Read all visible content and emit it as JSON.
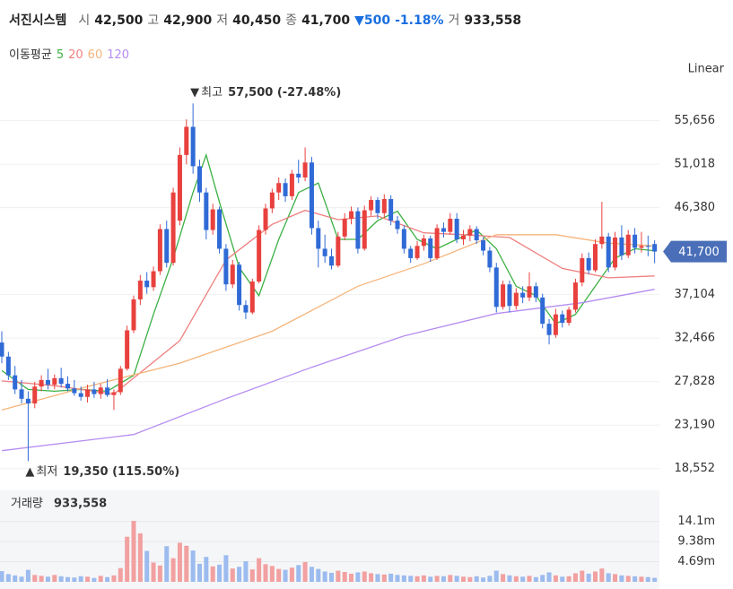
{
  "chart_data": {
    "type": "candlestick",
    "header": {
      "name": "서진시스템",
      "open_label": "시",
      "open": "42,500",
      "high_label": "고",
      "high": "42,900",
      "low_label": "저",
      "low": "40,450",
      "close_label": "종",
      "close": "41,700",
      "change": "▼500",
      "change_pct": "-1.18%",
      "volume_label": "거",
      "volume": "933,558"
    },
    "ma_title": "이동평균",
    "scale_mode": "Linear",
    "up_color": "#e8413e",
    "down_color": "#2f6ad6",
    "up_volume_color": "#f2a0a0",
    "down_volume_color": "#9cbbee",
    "ylim": [
      16900,
      60400
    ],
    "yticks": [
      {
        "value": 55656,
        "label": "55,656"
      },
      {
        "value": 51018,
        "label": "51,018"
      },
      {
        "value": 46380,
        "label": "46,380"
      },
      {
        "value": 37104,
        "label": "37,104"
      },
      {
        "value": 32466,
        "label": "32,466"
      },
      {
        "value": 27828,
        "label": "27,828"
      },
      {
        "value": 23190,
        "label": "23,190"
      },
      {
        "value": 18552,
        "label": "18,552"
      }
    ],
    "grid": true,
    "price_tag": {
      "value": 41700,
      "label": "41,700",
      "color": "#4a6fb8"
    },
    "high_note": {
      "marker": "▼",
      "label": "최고",
      "text": "57,500 (-27.48%)",
      "index": 29,
      "value": 57500
    },
    "low_note": {
      "marker": "▲",
      "label": "최저",
      "text": "19,350 (115.50%)",
      "index": 4,
      "value": 19350
    },
    "candles": [
      [
        32000,
        33200,
        29800,
        30500
      ],
      [
        30500,
        31000,
        28000,
        28500
      ],
      [
        28500,
        29500,
        26500,
        27000
      ],
      [
        27000,
        28000,
        25500,
        26000
      ],
      [
        26000,
        26800,
        19350,
        25500
      ],
      [
        25500,
        27800,
        25000,
        27300
      ],
      [
        27300,
        28500,
        26800,
        28000
      ],
      [
        28000,
        29200,
        27000,
        27500
      ],
      [
        27500,
        28600,
        27000,
        28200
      ],
      [
        28200,
        29300,
        27200,
        27600
      ],
      [
        27600,
        28400,
        26800,
        27100
      ],
      [
        27100,
        28000,
        26300,
        26600
      ],
      [
        26600,
        27300,
        25800,
        26200
      ],
      [
        26200,
        27500,
        25600,
        27000
      ],
      [
        27000,
        27800,
        26100,
        26500
      ],
      [
        26500,
        27600,
        26000,
        27200
      ],
      [
        27200,
        28100,
        26200,
        26400
      ],
      [
        26400,
        27000,
        24800,
        26700
      ],
      [
        26700,
        29500,
        26400,
        29200
      ],
      [
        29200,
        33800,
        29000,
        33300
      ],
      [
        33300,
        37000,
        33000,
        36600
      ],
      [
        36600,
        39200,
        36000,
        38600
      ],
      [
        38600,
        39500,
        37200,
        37900
      ],
      [
        37900,
        40100,
        37500,
        39600
      ],
      [
        39600,
        44600,
        39200,
        44100
      ],
      [
        44100,
        45000,
        40000,
        40500
      ],
      [
        40500,
        48500,
        40200,
        48000
      ],
      [
        45000,
        52800,
        44500,
        52000
      ],
      [
        52000,
        55800,
        51000,
        55000
      ],
      [
        55000,
        57500,
        50000,
        50800
      ],
      [
        50800,
        51500,
        47000,
        48000
      ],
      [
        48000,
        48500,
        43000,
        44000
      ],
      [
        44000,
        46800,
        43500,
        46200
      ],
      [
        46200,
        46500,
        41500,
        42000
      ],
      [
        42000,
        42500,
        37500,
        38200
      ],
      [
        38200,
        40800,
        37800,
        40300
      ],
      [
        40300,
        40600,
        35400,
        36000
      ],
      [
        36000,
        36500,
        34500,
        35200
      ],
      [
        35200,
        38800,
        35000,
        38500
      ],
      [
        38500,
        44500,
        38300,
        44000
      ],
      [
        44000,
        46800,
        43500,
        46300
      ],
      [
        46300,
        48400,
        45800,
        48000
      ],
      [
        48000,
        49600,
        47200,
        49000
      ],
      [
        49000,
        49500,
        47000,
        47600
      ],
      [
        47600,
        50400,
        47200,
        50000
      ],
      [
        50000,
        51500,
        49000,
        49600
      ],
      [
        49600,
        52800,
        49200,
        51200
      ],
      [
        51200,
        51800,
        43500,
        44200
      ],
      [
        44200,
        45000,
        40000,
        42000
      ],
      [
        42000,
        43500,
        40500,
        41200
      ],
      [
        41200,
        42000,
        39800,
        40200
      ],
      [
        40200,
        43800,
        40000,
        43300
      ],
      [
        43300,
        45800,
        42900,
        45200
      ],
      [
        45200,
        46500,
        44600,
        46000
      ],
      [
        46000,
        46400,
        41500,
        42000
      ],
      [
        42000,
        46600,
        41800,
        46100
      ],
      [
        46100,
        47600,
        45500,
        47200
      ],
      [
        47200,
        47500,
        45200,
        45800
      ],
      [
        45800,
        47800,
        45300,
        47300
      ],
      [
        47300,
        47700,
        44500,
        45000
      ],
      [
        45000,
        45500,
        43600,
        44100
      ],
      [
        44100,
        44500,
        41500,
        42000
      ],
      [
        42000,
        42300,
        40500,
        41000
      ],
      [
        41000,
        42800,
        40800,
        42300
      ],
      [
        42300,
        43500,
        41800,
        43100
      ],
      [
        43100,
        43400,
        40600,
        41000
      ],
      [
        41000,
        44600,
        40800,
        44200
      ],
      [
        44200,
        44800,
        43200,
        43800
      ],
      [
        43800,
        45800,
        43500,
        45200
      ],
      [
        45200,
        45800,
        42600,
        43000
      ],
      [
        43000,
        44000,
        42400,
        43400
      ],
      [
        43400,
        44500,
        42800,
        44100
      ],
      [
        44100,
        44400,
        42500,
        42900
      ],
      [
        42900,
        43200,
        41300,
        41800
      ],
      [
        41800,
        42200,
        39500,
        40000
      ],
      [
        40000,
        40500,
        35200,
        35800
      ],
      [
        35800,
        38600,
        35500,
        38200
      ],
      [
        38200,
        38600,
        35200,
        35900
      ],
      [
        35900,
        37800,
        35500,
        37300
      ],
      [
        37300,
        38000,
        36200,
        36800
      ],
      [
        36800,
        39500,
        36400,
        38000
      ],
      [
        38000,
        38400,
        36300,
        36800
      ],
      [
        36800,
        37200,
        33500,
        34000
      ],
      [
        34000,
        34500,
        31800,
        32800
      ],
      [
        32800,
        35600,
        32500,
        35000
      ],
      [
        35000,
        35400,
        33600,
        34100
      ],
      [
        34100,
        35800,
        33800,
        35500
      ],
      [
        35500,
        38800,
        35200,
        38400
      ],
      [
        38400,
        41500,
        38000,
        41000
      ],
      [
        41000,
        41600,
        39300,
        39700
      ],
      [
        39700,
        43000,
        39500,
        42500
      ],
      [
        42500,
        47000,
        42000,
        43300
      ],
      [
        43300,
        43700,
        39500,
        40000
      ],
      [
        40000,
        43800,
        39700,
        43200
      ],
      [
        43200,
        44500,
        40800,
        41300
      ],
      [
        41300,
        44000,
        41000,
        43500
      ],
      [
        43500,
        44200,
        41500,
        42100
      ],
      [
        42100,
        43800,
        41600,
        42300
      ],
      [
        42300,
        43400,
        41200,
        42200
      ],
      [
        42500,
        42900,
        40450,
        41700
      ]
    ],
    "ma": [
      {
        "name": "5",
        "color": "#3cb043",
        "x": [
          0,
          4,
          8,
          12,
          16,
          20,
          23,
          26,
          29,
          31,
          33,
          36,
          39,
          42,
          45,
          48,
          51,
          54,
          57,
          60,
          63,
          66,
          69,
          72,
          75,
          78,
          81,
          84,
          87,
          90,
          93,
          96,
          99
        ],
        "values": [
          29000,
          27000,
          26800,
          27000,
          26800,
          28500,
          35000,
          41000,
          48000,
          52000,
          47000,
          40000,
          37000,
          43000,
          48000,
          49000,
          43000,
          43000,
          45000,
          46000,
          43000,
          42000,
          43000,
          44000,
          42000,
          38000,
          37000,
          34000,
          35000,
          38000,
          41000,
          42000,
          41800
        ]
      },
      {
        "name": "20",
        "color": "#f07f7f",
        "x": [
          0,
          8,
          17,
          27,
          34,
          41,
          46,
          51,
          57,
          64,
          70,
          77,
          85,
          92,
          99
        ],
        "values": [
          27900,
          27400,
          26500,
          32200,
          40800,
          44600,
          46100,
          45100,
          45500,
          43700,
          43500,
          43200,
          39900,
          38900,
          39100
        ]
      },
      {
        "name": "60",
        "color": "#f5b47a",
        "x": [
          0,
          13,
          27,
          41,
          54,
          64,
          75,
          84,
          92,
          99
        ],
        "values": [
          24800,
          27300,
          29800,
          33200,
          38000,
          40400,
          43500,
          43500,
          42600,
          42300
        ]
      },
      {
        "name": "120",
        "color": "#b58cf0",
        "x": [
          0,
          20,
          34,
          47,
          61,
          75,
          88,
          99
        ],
        "values": [
          20465,
          22185,
          26010,
          29358,
          32705,
          35095,
          36243,
          37678
        ]
      }
    ],
    "volume_title": "거래량",
    "volume_value": "933,558",
    "volume": [
      2500000,
      1800000,
      1500000,
      1200000,
      2800000,
      1600000,
      1400000,
      1200000,
      1600000,
      1300000,
      1100000,
      1000000,
      1300000,
      1200000,
      900000,
      1400000,
      1100000,
      1500000,
      3200000,
      10500000,
      14200000,
      11300000,
      7200000,
      4500000,
      3800000,
      8300000,
      5500000,
      9100000,
      8400000,
      7300000,
      4200000,
      5800000,
      3600000,
      4000000,
      6200000,
      3100000,
      3500000,
      4800000,
      2900000,
      5500000,
      4100000,
      3700000,
      3000000,
      2800000,
      3300000,
      3900000,
      4600000,
      3500000,
      3000000,
      2400000,
      2100000,
      2600000,
      2300000,
      1900000,
      2200000,
      2400000,
      2000000,
      1800000,
      1700000,
      1900000,
      1600000,
      1500000,
      1400000,
      1300000,
      1500000,
      1200000,
      1400000,
      1300000,
      1600000,
      1400000,
      1200000,
      1100000,
      1300000,
      1000000,
      1400000,
      2600000,
      1800000,
      1500000,
      1300000,
      1200000,
      1400000,
      1100000,
      1600000,
      2200000,
      1500000,
      1200000,
      1300000,
      2000000,
      2600000,
      1900000,
      2400000,
      3100000,
      2000000,
      1800000,
      1500000,
      1400000,
      1300000,
      1200000,
      1100000,
      933558
    ],
    "vylim": [
      0,
      21300000
    ],
    "vyticks": [
      {
        "value": 4690000,
        "label": "4.69m"
      },
      {
        "value": 9380000,
        "label": "9.38m"
      },
      {
        "value": 14070000,
        "label": "14.1m"
      }
    ]
  }
}
